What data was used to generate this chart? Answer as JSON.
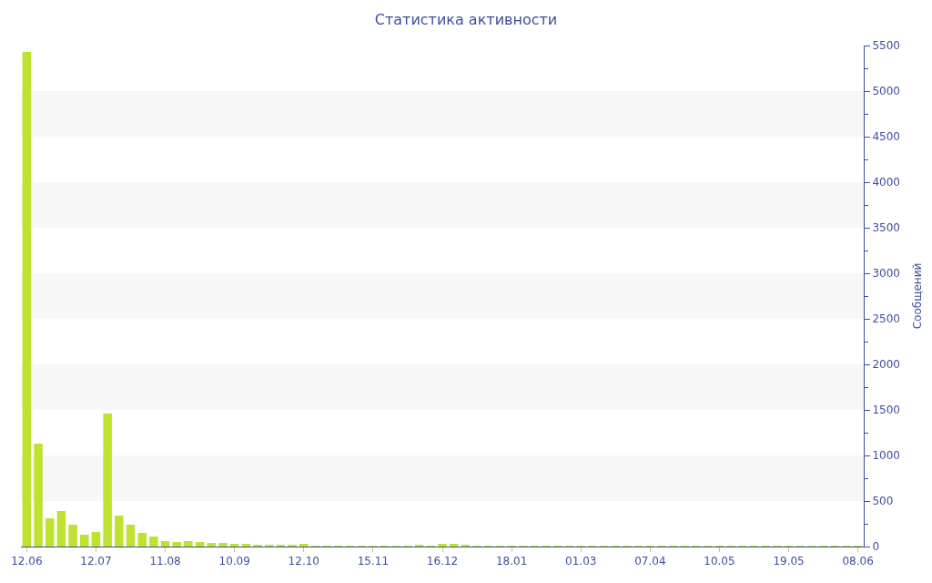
{
  "chart_data": {
    "type": "bar",
    "title": "Статистика активности",
    "ylabel": "Сообщений",
    "categories": [
      "12.06",
      null,
      null,
      null,
      null,
      null,
      "12.07",
      null,
      null,
      null,
      null,
      null,
      "11.08",
      null,
      null,
      null,
      null,
      null,
      "10.09",
      null,
      null,
      null,
      null,
      null,
      "12.10",
      null,
      null,
      null,
      null,
      null,
      "15.11",
      null,
      null,
      null,
      null,
      null,
      "16.12",
      null,
      null,
      null,
      null,
      null,
      "18.01",
      null,
      null,
      null,
      null,
      null,
      "01.03",
      null,
      null,
      null,
      null,
      null,
      "07.04",
      null,
      null,
      null,
      null,
      null,
      "10.05",
      null,
      null,
      null,
      null,
      null,
      "19.05",
      null,
      null,
      null,
      null,
      null,
      "08.06"
    ],
    "values": [
      5430,
      1130,
      310,
      390,
      240,
      130,
      160,
      1460,
      340,
      240,
      150,
      110,
      60,
      50,
      60,
      50,
      40,
      40,
      30,
      30,
      20,
      20,
      20,
      20,
      30,
      10,
      10,
      10,
      10,
      10,
      10,
      10,
      10,
      10,
      20,
      10,
      30,
      30,
      20,
      10,
      10,
      10,
      10,
      10,
      10,
      10,
      10,
      10,
      10,
      10,
      10,
      10,
      10,
      10,
      10,
      10,
      10,
      10,
      10,
      10,
      10,
      10,
      10,
      10,
      10,
      10,
      10,
      10,
      10,
      10,
      10,
      10,
      10
    ],
    "color": "#bde22f",
    "ylim": [
      0,
      5500
    ],
    "yticks": [
      0,
      500,
      1000,
      1500,
      2000,
      2500,
      3000,
      3500,
      4000,
      4500,
      5000,
      5500
    ],
    "bands": [
      {
        "axis": "y",
        "from": 500,
        "to": 1000,
        "color": "#f7f7f7"
      },
      {
        "axis": "y",
        "from": 1500,
        "to": 2000,
        "color": "#f7f7f7"
      },
      {
        "axis": "y",
        "from": 2500,
        "to": 3000,
        "color": "#f7f7f7"
      },
      {
        "axis": "y",
        "from": 3500,
        "to": 4000,
        "color": "#f7f7f7"
      },
      {
        "axis": "y",
        "from": 4500,
        "to": 5000,
        "color": "#f7f7f7"
      }
    ],
    "legend": false
  }
}
